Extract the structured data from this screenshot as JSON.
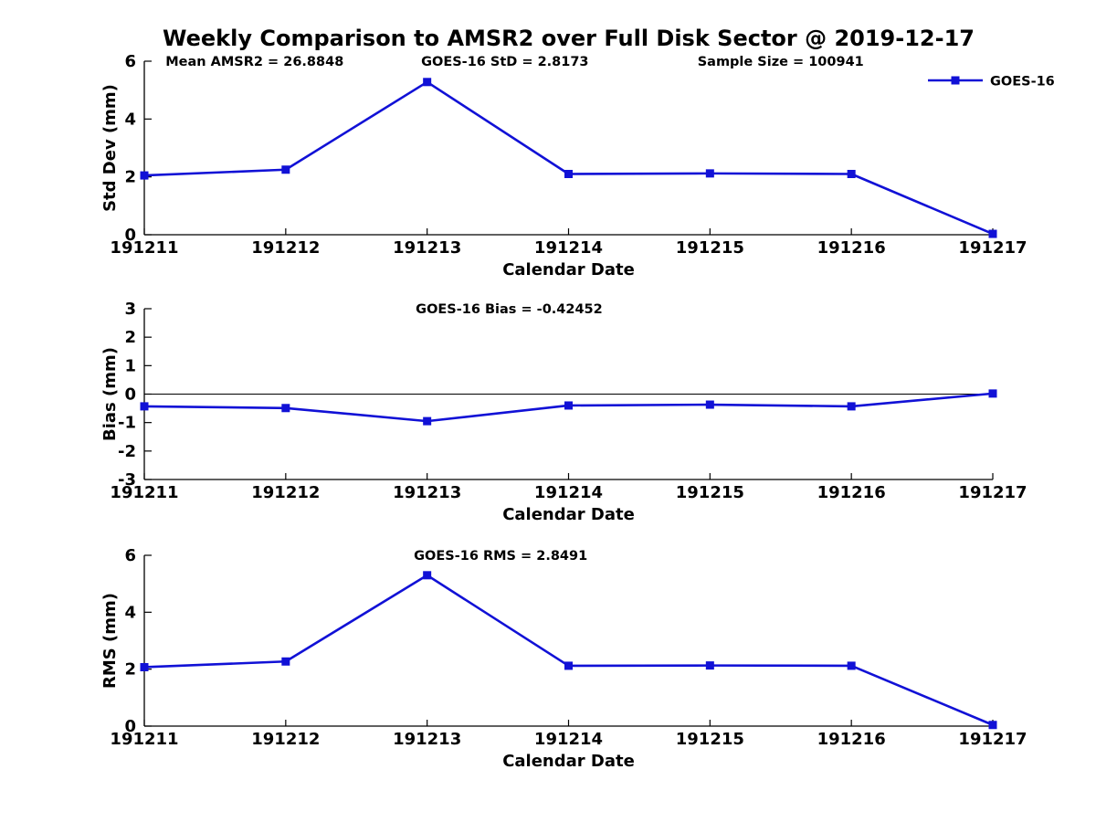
{
  "title": "Weekly Comparison to AMSR2 over Full Disk Sector @ 2019-12-17",
  "colors": {
    "series": "#1111d6",
    "axis": "#000000",
    "background": "#ffffff"
  },
  "legend": {
    "label": "GOES-16",
    "position": "top-right"
  },
  "chart_data": [
    {
      "type": "line",
      "name": "std-dev-panel",
      "ylabel": "Std Dev (mm)",
      "xlabel": "Calendar Date",
      "categories": [
        "191211",
        "191212",
        "191213",
        "191214",
        "191215",
        "191216",
        "191217"
      ],
      "series": [
        {
          "name": "GOES-16",
          "values": [
            2.05,
            2.25,
            5.28,
            2.1,
            2.12,
            2.1,
            0.03
          ]
        }
      ],
      "ylim": [
        0,
        6
      ],
      "yticks": [
        0,
        2,
        4,
        6
      ],
      "grid": false,
      "legend_visible": true,
      "annotations": [
        {
          "text": "Mean AMSR2 = 26.8848",
          "xfrac": 0.13
        },
        {
          "text": "GOES-16 StD = 2.8173",
          "xfrac": 0.425
        },
        {
          "text": "Sample Size = 100941",
          "xfrac": 0.75
        }
      ]
    },
    {
      "type": "line",
      "name": "bias-panel",
      "ylabel": "Bias (mm)",
      "xlabel": "Calendar Date",
      "categories": [
        "191211",
        "191212",
        "191213",
        "191214",
        "191215",
        "191216",
        "191217"
      ],
      "series": [
        {
          "name": "GOES-16",
          "values": [
            -0.43,
            -0.49,
            -0.95,
            -0.4,
            -0.37,
            -0.43,
            0.02
          ]
        }
      ],
      "ylim": [
        -3,
        3
      ],
      "yticks": [
        -3,
        -2,
        -1,
        0,
        1,
        2,
        3
      ],
      "zero_line": true,
      "grid": false,
      "legend_visible": false,
      "annotations": [
        {
          "text": "GOES-16 Bias  = -0.42452",
          "xfrac": 0.43
        }
      ]
    },
    {
      "type": "line",
      "name": "rms-panel",
      "ylabel": "RMS (mm)",
      "xlabel": "Calendar Date",
      "categories": [
        "191211",
        "191212",
        "191213",
        "191214",
        "191215",
        "191216",
        "191217"
      ],
      "series": [
        {
          "name": "GOES-16",
          "values": [
            2.07,
            2.27,
            5.3,
            2.12,
            2.13,
            2.12,
            0.04
          ]
        }
      ],
      "ylim": [
        0,
        6
      ],
      "yticks": [
        0,
        2,
        4,
        6
      ],
      "grid": false,
      "legend_visible": false,
      "annotations": [
        {
          "text": "GOES-16 RMS = 2.8491",
          "xfrac": 0.42
        }
      ]
    }
  ]
}
